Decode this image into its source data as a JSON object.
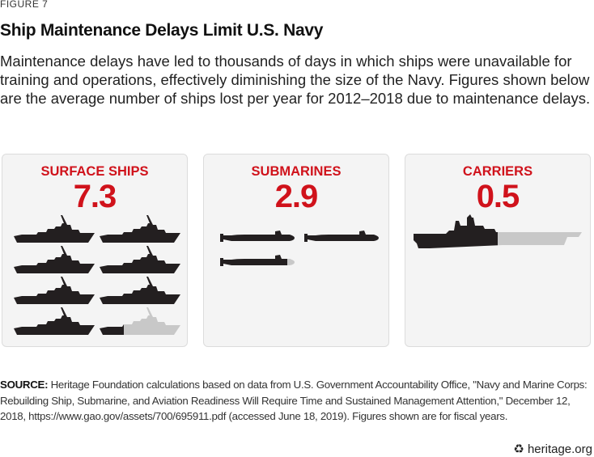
{
  "figure_label": "FIGURE 7",
  "title": "Ship Maintenance Delays Limit U.S. Navy",
  "subtitle": "Maintenance delays have led to thousands of days in which ships were unavailable for training and operations, effectively diminishing the size of the Navy. Figures shown below are the average number of ships lost per year for 2012–2018 due to maintenance delays.",
  "chart_data": {
    "type": "pictograph",
    "unit": "ships lost per year (average, 2012–2018)",
    "categories": [
      "SURFACE SHIPS",
      "SUBMARINES",
      "CARRIERS"
    ],
    "values": [
      7.3,
      2.9,
      0.5
    ],
    "display_values": [
      "7.3",
      "2.9",
      "0.5"
    ],
    "icons": [
      "surface-ship-icon",
      "submarine-icon",
      "carrier-icon"
    ]
  },
  "colors": {
    "accent": "#d0121b",
    "filled": "#231f20",
    "unfilled": "#c8c8c8",
    "panel": "#f4f4f4"
  },
  "source": {
    "label": "SOURCE:",
    "text": " Heritage Foundation calculations based on data from U.S. Government Accountability Office, \"Navy and Marine Corps: Rebuilding Ship, Submarine, and Aviation Readiness Will Require Time and Sustained Management Attention,\" December 12, 2018, https://www.gao.gov/assets/700/695911.pdf (accessed June 18, 2019). Figures shown are for fiscal years."
  },
  "brand": {
    "icon": "liberty-bell-icon",
    "text": "heritage.org"
  }
}
